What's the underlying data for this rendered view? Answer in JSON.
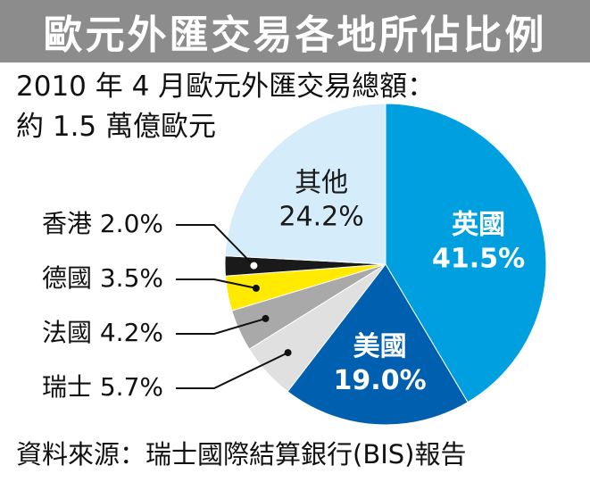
{
  "title": "歐元外匯交易各地所佔比例",
  "subtitle_line1": "2010 年 4 月歐元外匯交易總額：",
  "subtitle_line2": "約 1.5 萬億歐元",
  "source": "資料來源：瑞士國際結算銀行(BIS)報告",
  "colors": {
    "title_bar": "#8c8c8c",
    "uk": "#00a0e0",
    "us": "#005fae",
    "switzerland": "#e0e0e0",
    "france": "#a9a9a9",
    "germany": "#ffea00",
    "hongkong": "#1a1a1a",
    "others": "#d5ecfa"
  },
  "chart_data": {
    "type": "pie",
    "title": "歐元外匯交易各地所佔比例",
    "unit": "%",
    "slices": [
      {
        "name": "英國",
        "value": 41.5,
        "label": "41.5%",
        "color": "#00a0e0",
        "label_style": "inside-white"
      },
      {
        "name": "美國",
        "value": 19.0,
        "label": "19.0%",
        "color": "#005fae",
        "label_style": "inside-white"
      },
      {
        "name": "瑞士",
        "value": 5.7,
        "label": "5.7%",
        "color": "#e0e0e0",
        "label_style": "outside"
      },
      {
        "name": "法國",
        "value": 4.2,
        "label": "4.2%",
        "color": "#a9a9a9",
        "label_style": "outside"
      },
      {
        "name": "德國",
        "value": 3.5,
        "label": "3.5%",
        "color": "#ffea00",
        "label_style": "outside"
      },
      {
        "name": "香港",
        "value": 2.0,
        "label": "2.0%",
        "color": "#1a1a1a",
        "label_style": "outside"
      },
      {
        "name": "其他",
        "value": 24.2,
        "label": "24.2%",
        "color": "#d5ecfa",
        "label_style": "inside-dark"
      }
    ]
  }
}
